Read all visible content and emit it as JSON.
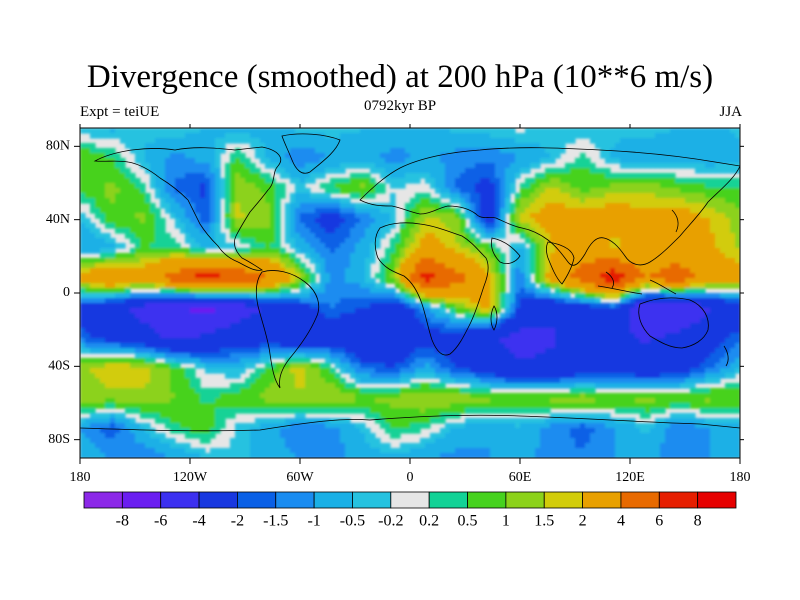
{
  "header": {
    "title": "Divergence (smoothed) at 200 hPa (10**6 m/s)",
    "experiment": "Expt = teiUE",
    "period": "0792kyr BP",
    "season": "JJA"
  },
  "chart_data": {
    "type": "heatmap",
    "title": "Divergence (smoothed) at 200 hPa (10**6 m/s)",
    "subtitle_left": "Expt = teiUE",
    "subtitle_center": "0792kyr BP",
    "subtitle_right": "JJA",
    "projection": "cylindrical equidistant",
    "units": "10**6 m/s",
    "x_axis": {
      "range": [
        -180,
        180
      ],
      "ticks": [
        {
          "value": -180,
          "label": "180"
        },
        {
          "value": -120,
          "label": "120W"
        },
        {
          "value": -60,
          "label": "60W"
        },
        {
          "value": 0,
          "label": "0"
        },
        {
          "value": 60,
          "label": "60E"
        },
        {
          "value": 120,
          "label": "120E"
        },
        {
          "value": 180,
          "label": "180"
        }
      ]
    },
    "y_axis": {
      "range": [
        -90,
        90
      ],
      "ticks": [
        {
          "value": 80,
          "label": "80N"
        },
        {
          "value": 40,
          "label": "40N"
        },
        {
          "value": 0,
          "label": "0"
        },
        {
          "value": -40,
          "label": "40S"
        },
        {
          "value": -80,
          "label": "80S"
        }
      ]
    },
    "contour_levels": [
      "-8",
      "-6",
      "-4",
      "-2",
      "-1.5",
      "-1",
      "-0.5",
      "-0.2",
      "0.2",
      "0.5",
      "1",
      "1.5",
      "2",
      "4",
      "6",
      "8"
    ],
    "colors": [
      "#8c28e8",
      "#6a1ef0",
      "#3c30f0",
      "#1838e0",
      "#0a60e6",
      "#1a8cf0",
      "#1ab0e6",
      "#26c2e0",
      "#e6e6e6",
      "#12d296",
      "#46d21e",
      "#8cd21a",
      "#d2cc0a",
      "#e8a000",
      "#e86a00",
      "#e61e00",
      "#e60000"
    ],
    "grid": [
      [
        -0.5,
        -0.6,
        -0.4,
        -0.2,
        -0.5,
        -0.8,
        -0.6,
        -0.4,
        -0.3,
        -0.5,
        -0.7,
        -0.6,
        -0.4,
        -0.2,
        -0.1,
        -0.3,
        -0.5,
        -0.4,
        -0.3,
        -0.5,
        -0.6,
        -0.4
      ],
      [
        1.0,
        0.5,
        -0.5,
        -1.2,
        -0.8,
        0.6,
        -0.6,
        -1.4,
        -1.0,
        -0.8,
        -1.2,
        -0.9,
        -1.2,
        -1.4,
        -1.0,
        -0.5,
        0.4,
        -0.6,
        -1.0,
        -0.8,
        -0.9,
        -0.7
      ],
      [
        0.6,
        1.2,
        0.4,
        -1.6,
        -2.2,
        1.4,
        0.8,
        -0.3,
        0.6,
        1.2,
        -0.2,
        0.1,
        -1.6,
        -2.4,
        0.3,
        1.6,
        0.8,
        1.2,
        1.4,
        0.9,
        0.6,
        0.5
      ],
      [
        -0.5,
        0.8,
        1.1,
        -0.3,
        -1.8,
        1.6,
        1.2,
        -1.6,
        -2.6,
        -1.4,
        -0.4,
        1.6,
        1.2,
        -3.0,
        1.8,
        2.6,
        2.4,
        2.8,
        2.2,
        2.6,
        2.0,
        1.2
      ],
      [
        -1.0,
        -0.8,
        0.5,
        0.4,
        -0.5,
        -0.3,
        0.6,
        -0.6,
        -1.6,
        -0.8,
        0.5,
        2.6,
        1.6,
        0.8,
        -0.8,
        1.8,
        3.2,
        1.6,
        3.0,
        2.4,
        2.2,
        1.4
      ],
      [
        2.5,
        4.0,
        3.0,
        5.0,
        7.2,
        5.8,
        4.2,
        1.5,
        -1.2,
        -0.6,
        1.2,
        7.0,
        4.8,
        2.2,
        -1.4,
        2.6,
        5.0,
        7.6,
        3.8,
        5.4,
        3.2,
        2.4
      ],
      [
        -2.4,
        -3.4,
        -4.6,
        -5.8,
        -6.6,
        -5.2,
        -3.6,
        -2.5,
        -1.5,
        -2.0,
        -3.0,
        -1.2,
        0.8,
        2.4,
        -2.2,
        -3.6,
        -2.8,
        -2.2,
        -5.8,
        -6.0,
        -4.2,
        -3.0
      ],
      [
        -1.6,
        -2.5,
        -3.2,
        -4.4,
        -3.6,
        -2.6,
        -2.8,
        -3.4,
        -2.8,
        -3.6,
        -3.2,
        -2.4,
        -2.8,
        -3.8,
        -4.6,
        -4.2,
        -3.4,
        -3.6,
        -4.2,
        -3.6,
        -2.6,
        -1.6
      ],
      [
        1.2,
        2.0,
        1.8,
        0.8,
        -0.3,
        -0.6,
        0.6,
        1.8,
        0.3,
        -1.6,
        -2.0,
        -0.8,
        -2.0,
        -2.8,
        -3.8,
        -3.6,
        -3.0,
        -2.8,
        -3.2,
        -2.8,
        -1.6,
        -0.5
      ],
      [
        1.4,
        1.2,
        1.4,
        1.0,
        0.4,
        0.8,
        1.2,
        1.4,
        1.6,
        1.0,
        1.2,
        1.6,
        1.4,
        1.2,
        1.0,
        1.2,
        1.4,
        1.0,
        1.2,
        1.0,
        1.2,
        1.0
      ],
      [
        -1.0,
        -1.8,
        -0.5,
        0.4,
        0.8,
        -0.3,
        -0.8,
        -1.4,
        -1.2,
        -0.4,
        0.6,
        0.2,
        -0.6,
        -1.0,
        -0.6,
        -1.2,
        -1.8,
        -1.0,
        -0.4,
        -1.4,
        -1.0,
        -0.8
      ],
      [
        -0.6,
        -1.0,
        -1.4,
        -1.0,
        -0.5,
        -0.3,
        -0.8,
        -1.0,
        -1.2,
        -0.8,
        -0.6,
        -1.0,
        -1.2,
        -1.0,
        -0.8,
        -1.2,
        -1.4,
        -1.0,
        -0.9,
        -1.2,
        -1.0,
        -0.8
      ]
    ]
  }
}
